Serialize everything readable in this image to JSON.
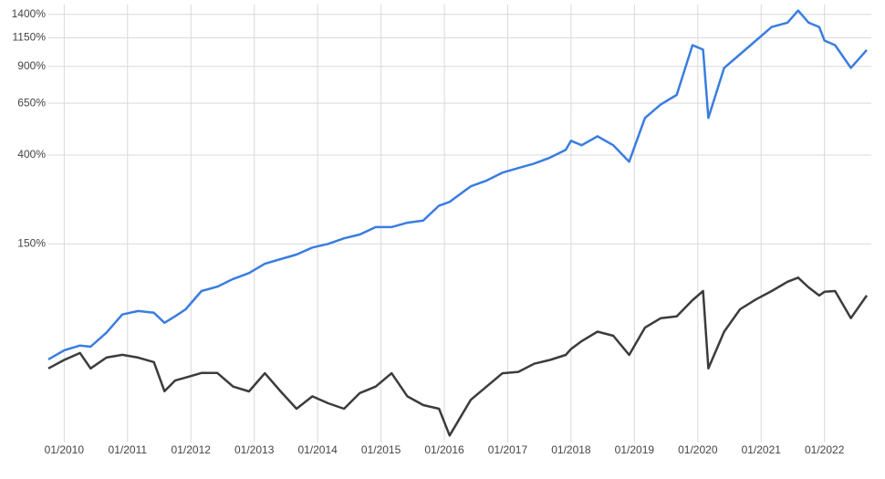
{
  "chart_data": {
    "type": "line",
    "log_scale": true,
    "grid": true,
    "x": [
      "10/2009",
      "01/2010",
      "04/2010",
      "06/2010",
      "09/2010",
      "12/2010",
      "03/2011",
      "06/2011",
      "08/2011",
      "10/2011",
      "12/2011",
      "03/2012",
      "06/2012",
      "09/2012",
      "12/2012",
      "03/2013",
      "06/2013",
      "09/2013",
      "12/2013",
      "03/2014",
      "06/2014",
      "09/2014",
      "12/2014",
      "03/2015",
      "06/2015",
      "09/2015",
      "12/2015",
      "02/2016",
      "06/2016",
      "09/2016",
      "12/2016",
      "03/2017",
      "06/2017",
      "09/2017",
      "12/2017",
      "01/2018",
      "03/2018",
      "06/2018",
      "09/2018",
      "12/2018",
      "03/2019",
      "06/2019",
      "09/2019",
      "12/2019",
      "02/2020",
      "03/2020",
      "06/2020",
      "09/2020",
      "12/2020",
      "03/2021",
      "06/2021",
      "08/2021",
      "10/2021",
      "12/2021",
      "01/2022",
      "03/2022",
      "06/2022",
      "09/2022"
    ],
    "series": [
      {
        "color": "#3a7de0",
        "values": [
          1.4,
          8.9,
          13,
          12,
          25,
          44,
          48,
          46,
          35,
          42,
          50,
          73,
          79,
          90,
          99,
          114,
          122,
          130,
          143,
          150,
          161,
          169,
          185,
          185,
          195,
          200,
          237,
          247,
          292,
          310,
          336,
          352,
          368,
          390,
          421,
          459,
          440,
          479,
          440,
          375,
          568,
          643,
          700,
          1080,
          1039,
          568,
          888,
          999,
          1123,
          1260,
          1307,
          1446,
          1307,
          1260,
          1123,
          1080,
          888,
          1036
        ]
      },
      {
        "color": "#3c3c3c",
        "values": [
          -5.5,
          1,
          6.6,
          -5.5,
          2.9,
          5.1,
          2.9,
          -0.7,
          -20.9,
          -14,
          -12,
          -8.8,
          -8.8,
          -18,
          -21,
          -9,
          -21,
          -31,
          -24,
          -28,
          -31,
          -22,
          -18,
          -9,
          -24,
          -29,
          -31,
          -44,
          -26,
          -18,
          -9,
          -8,
          -2,
          1,
          5,
          10,
          17,
          26,
          22,
          5,
          30,
          40,
          42,
          61,
          73,
          -5.5,
          26,
          50,
          62,
          73,
          86,
          92,
          78,
          67,
          72,
          73,
          40,
          67
        ]
      }
    ],
    "ylim": [
      -47,
      1520
    ],
    "yticks": [
      {
        "value": 150,
        "label": "150%"
      },
      {
        "value": 400,
        "label": "400%"
      },
      {
        "value": 650,
        "label": "650%"
      },
      {
        "value": 900,
        "label": "900%"
      },
      {
        "value": 1150,
        "label": "1150%"
      },
      {
        "value": 1400,
        "label": "1400%"
      }
    ],
    "xticks": [
      "01/2010",
      "01/2011",
      "01/2012",
      "01/2013",
      "01/2014",
      "01/2015",
      "01/2016",
      "01/2017",
      "01/2018",
      "01/2019",
      "01/2020",
      "01/2021",
      "01/2022"
    ]
  }
}
